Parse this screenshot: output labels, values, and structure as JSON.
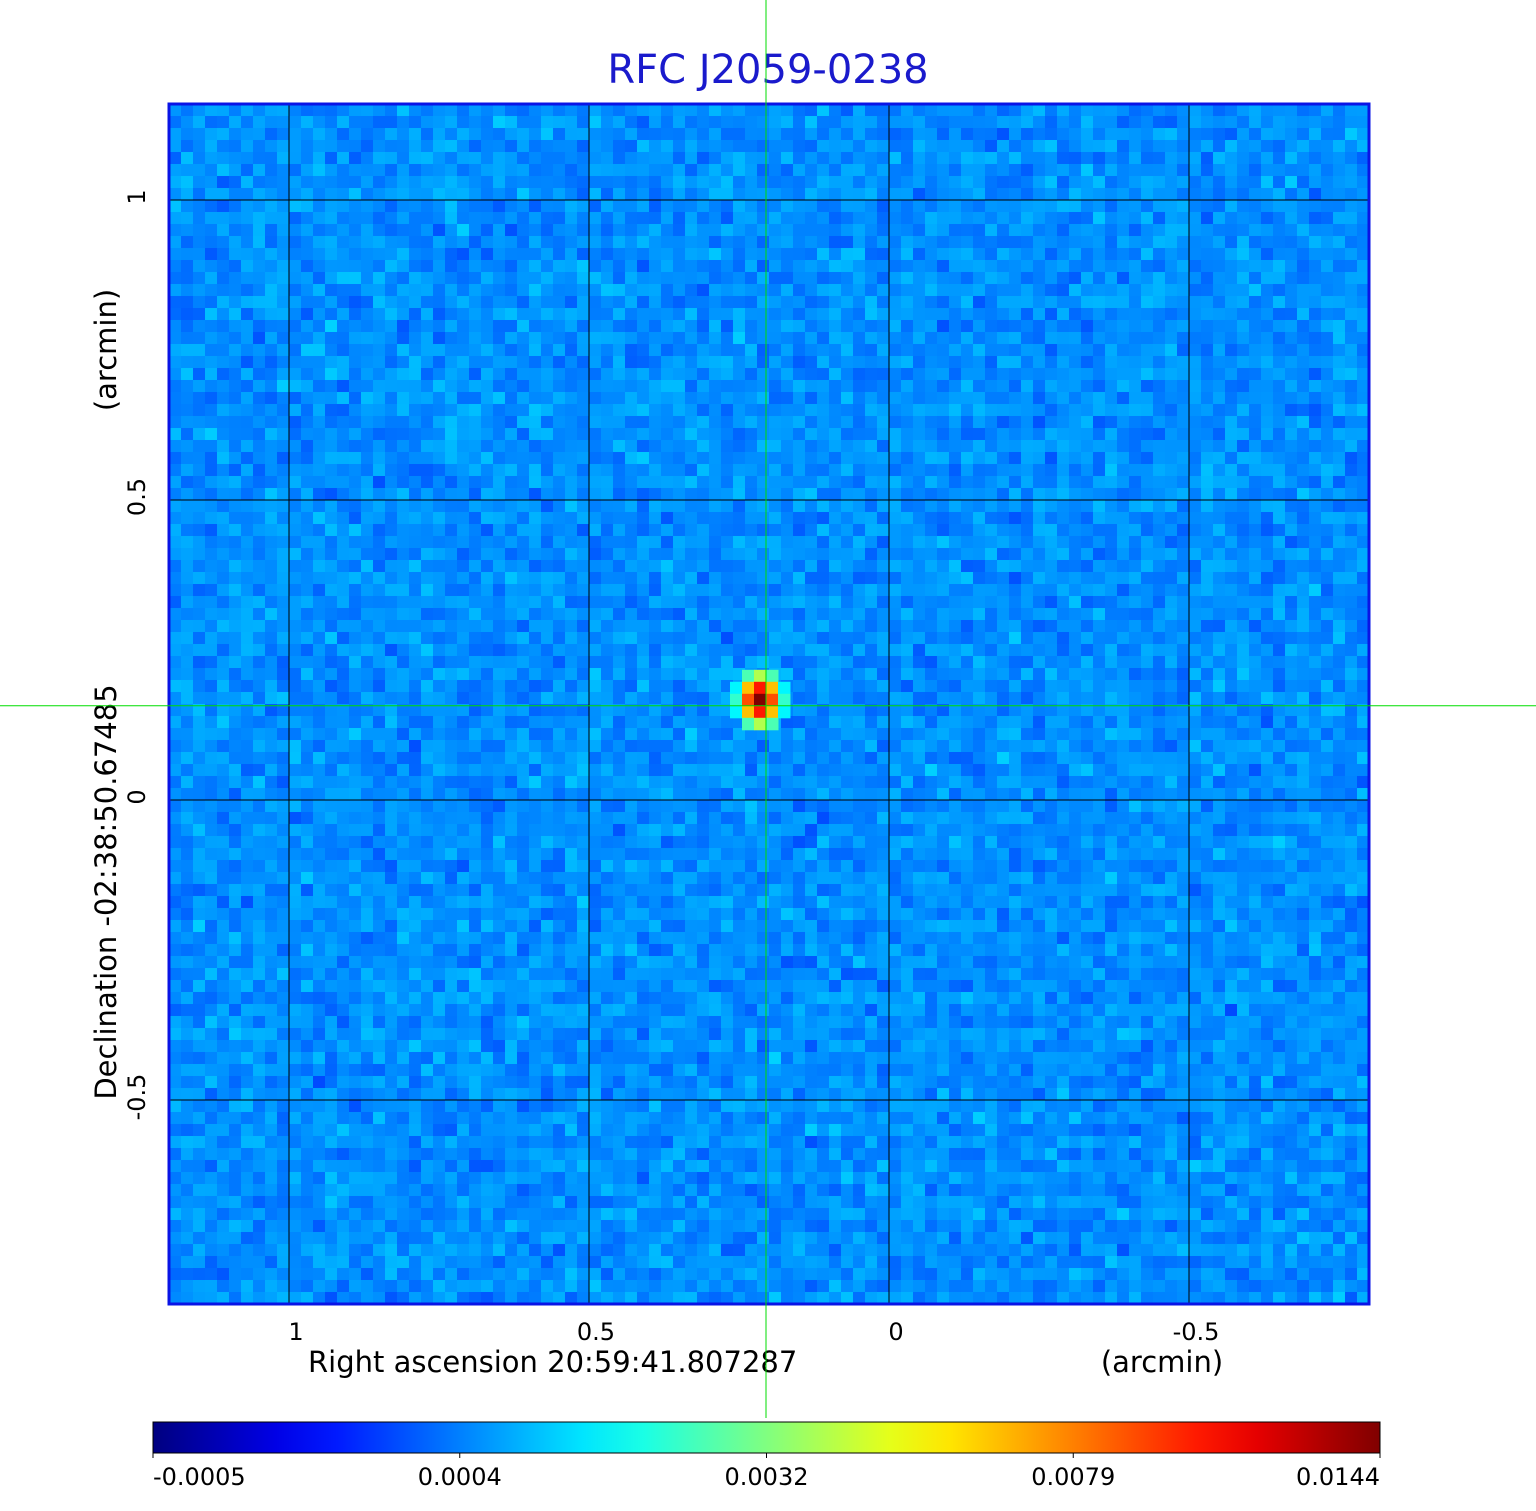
{
  "chart_data": {
    "type": "image",
    "title": "RFC J2059-0238",
    "x_label": "Right ascension  20:59:41.807287",
    "x_unit": "(arcmin)",
    "y_label": "Declination  -02:38:50.67485",
    "y_unit": "(arcmin)",
    "xlim": [
      1.2,
      -0.8
    ],
    "ylim": [
      -0.84,
      1.16
    ],
    "xticks": [
      1.0,
      0.5,
      0.0,
      -0.5
    ],
    "yticks": [
      1.0,
      0.5,
      0.0,
      -0.5
    ],
    "grid": true,
    "crosshair": {
      "x": 0.205,
      "y": 0.157,
      "color": "#00dd00"
    },
    "source": {
      "x": 0.205,
      "y": 0.157,
      "peak": 0.0144
    },
    "colorbar": {
      "ticks": [
        -0.0005,
        0.0004,
        0.0032,
        0.0079,
        0.0144
      ],
      "colormap": "jet"
    }
  }
}
